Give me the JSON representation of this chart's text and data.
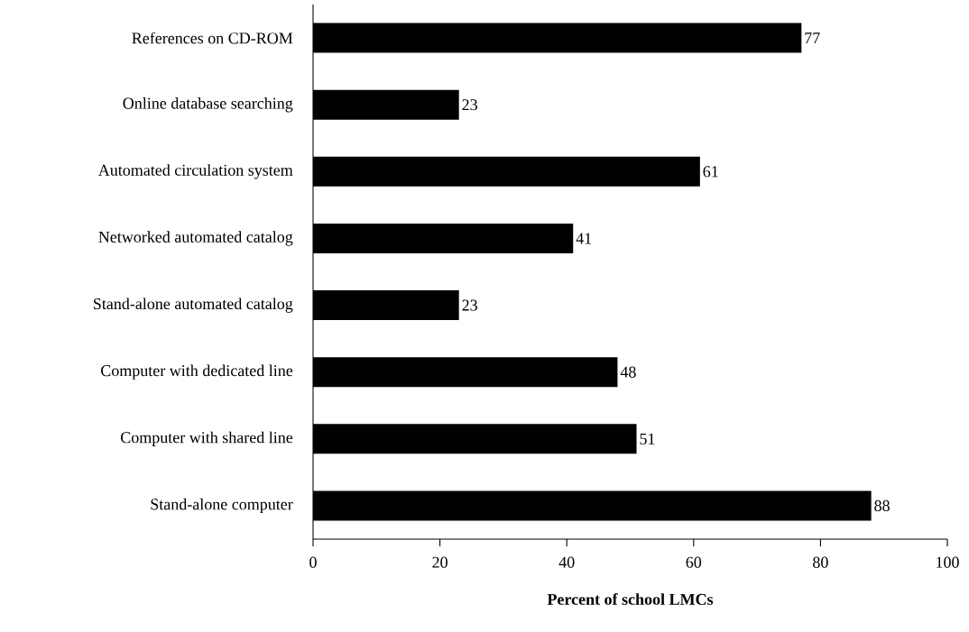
{
  "chart_data": {
    "type": "bar",
    "orientation": "horizontal",
    "categories": [
      "References on CD-ROM",
      "Online database searching",
      "Automated circulation system",
      "Networked automated catalog",
      "Stand-alone automated catalog",
      "Computer with dedicated line",
      "Computer with shared line",
      "Stand-alone computer"
    ],
    "values": [
      77,
      23,
      61,
      41,
      23,
      48,
      51,
      88
    ],
    "color": "#000000",
    "xlim": [
      0,
      100
    ],
    "xticks": [
      0,
      20,
      40,
      60,
      80,
      100
    ],
    "xlabel": "Percent of school LMCs",
    "data_labels": true
  }
}
